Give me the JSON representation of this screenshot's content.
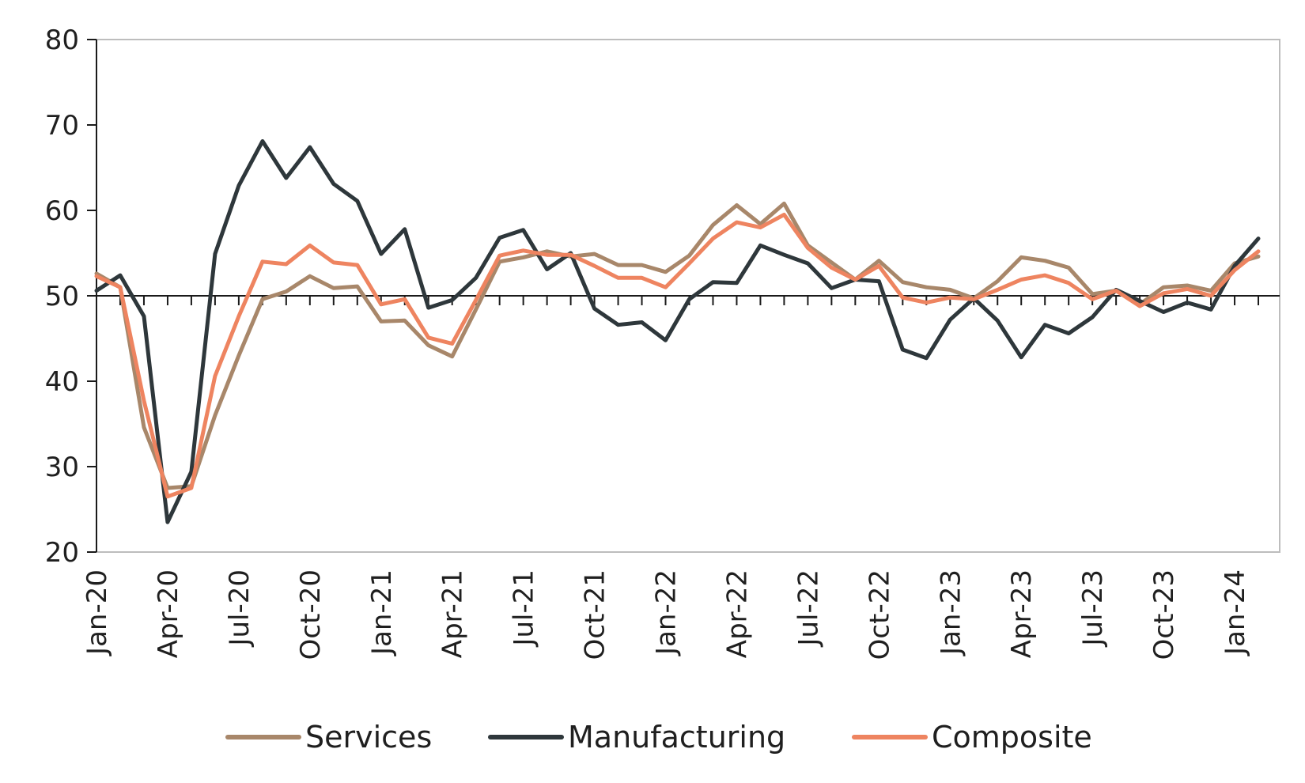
{
  "chart_data": {
    "type": "line",
    "title": "",
    "xlabel": "",
    "ylabel": "",
    "ylim": [
      20,
      80
    ],
    "yticks": [
      20,
      30,
      40,
      50,
      60,
      70,
      80
    ],
    "reference_line": 50,
    "grid": false,
    "legend_position": "bottom",
    "x": [
      "Jan-20",
      "Feb-20",
      "Mar-20",
      "Apr-20",
      "May-20",
      "Jun-20",
      "Jul-20",
      "Aug-20",
      "Sep-20",
      "Oct-20",
      "Nov-20",
      "Dec-20",
      "Jan-21",
      "Feb-21",
      "Mar-21",
      "Apr-21",
      "May-21",
      "Jun-21",
      "Jul-21",
      "Aug-21",
      "Sep-21",
      "Oct-21",
      "Nov-21",
      "Dec-21",
      "Jan-22",
      "Feb-22",
      "Mar-22",
      "Apr-22",
      "May-22",
      "Jun-22",
      "Jul-22",
      "Aug-22",
      "Sep-22",
      "Oct-22",
      "Nov-22",
      "Dec-22",
      "Jan-23",
      "Feb-23",
      "Mar-23",
      "Apr-23",
      "May-23",
      "Jun-23",
      "Jul-23",
      "Aug-23",
      "Sep-23",
      "Oct-23",
      "Nov-23",
      "Dec-23",
      "Jan-24",
      "Feb-24"
    ],
    "xtick_labels": [
      "Jan-20",
      "Apr-20",
      "Jul-20",
      "Oct-20",
      "Jan-21",
      "Apr-21",
      "Jul-21",
      "Oct-21",
      "Jan-22",
      "Apr-22",
      "Jul-22",
      "Oct-22",
      "Jan-23",
      "Apr-23",
      "Jul-23",
      "Oct-23",
      "Jan-24"
    ],
    "series": [
      {
        "name": "Services",
        "color": "#a8876a",
        "values": [
          52.6,
          51.0,
          34.6,
          27.5,
          27.7,
          36.0,
          43.0,
          49.6,
          50.5,
          52.3,
          50.9,
          51.1,
          47.0,
          47.1,
          44.2,
          42.9,
          48.4,
          54.0,
          54.5,
          55.2,
          54.6,
          54.9,
          53.6,
          53.6,
          52.8,
          54.7,
          58.3,
          60.6,
          58.4,
          60.8,
          55.9,
          53.9,
          51.9,
          54.1,
          51.6,
          51.0,
          50.7,
          49.7,
          51.7,
          54.5,
          54.1,
          53.3,
          50.2,
          50.6,
          49.0,
          51.0,
          51.2,
          50.6,
          53.8,
          54.6
        ]
      },
      {
        "name": "Manufacturing",
        "color": "#2e373b",
        "values": [
          50.6,
          52.4,
          47.6,
          23.5,
          29.4,
          54.9,
          62.9,
          68.1,
          63.8,
          67.4,
          63.1,
          61.1,
          54.9,
          57.8,
          48.6,
          49.5,
          52.1,
          56.8,
          57.7,
          53.1,
          55.0,
          48.5,
          46.6,
          46.9,
          44.8,
          49.6,
          51.6,
          51.5,
          55.9,
          54.8,
          53.8,
          50.9,
          51.9,
          51.7,
          43.7,
          42.7,
          47.2,
          49.7,
          47.1,
          42.8,
          46.6,
          45.6,
          47.5,
          50.7,
          49.4,
          48.1,
          49.2,
          48.4,
          53.5,
          56.7
        ]
      },
      {
        "name": "Composite",
        "color": "#ee8460",
        "values": [
          52.3,
          51.0,
          37.7,
          26.5,
          27.5,
          40.6,
          47.6,
          54.0,
          53.7,
          55.9,
          53.9,
          53.6,
          49.0,
          49.6,
          45.1,
          44.4,
          49.5,
          54.7,
          55.3,
          54.8,
          54.8,
          53.5,
          52.1,
          52.1,
          51.0,
          53.8,
          56.7,
          58.6,
          58.0,
          59.5,
          55.6,
          53.3,
          51.9,
          53.5,
          49.8,
          49.2,
          49.8,
          49.6,
          50.7,
          51.9,
          52.4,
          51.5,
          49.6,
          50.6,
          48.8,
          50.3,
          50.8,
          50.0,
          53.0,
          55.2
        ]
      }
    ]
  }
}
